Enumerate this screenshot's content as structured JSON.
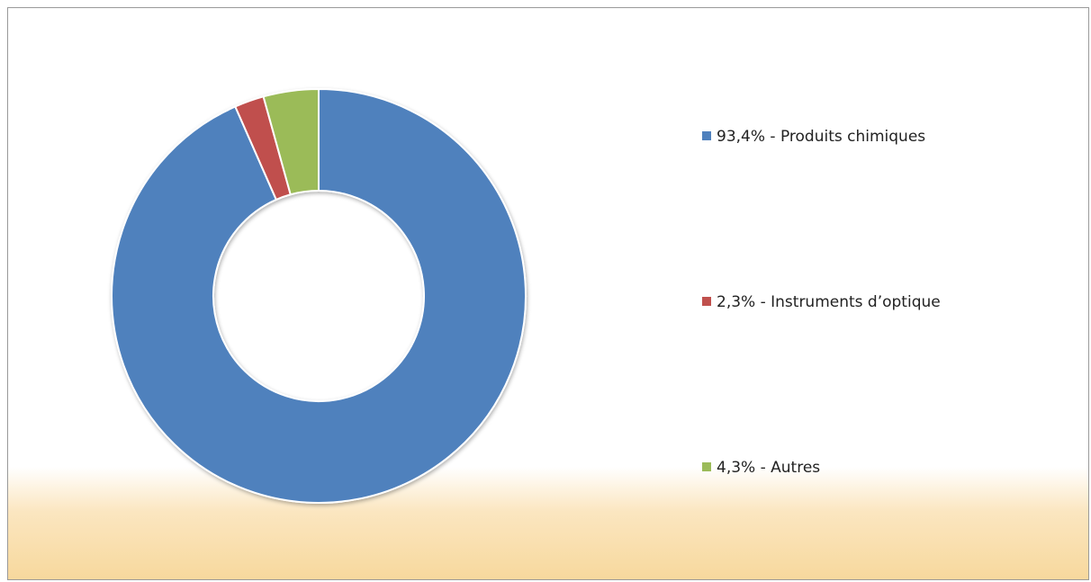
{
  "chart_data": {
    "type": "donut",
    "categories": [
      "93,4% - Produits chimiques",
      "2,3% - Instruments d’optique",
      "4,3% - Autres"
    ],
    "values": [
      93.4,
      2.3,
      4.3
    ],
    "colors": [
      "#4f81bd",
      "#c0504d",
      "#9bbb59"
    ],
    "legend": "right"
  }
}
